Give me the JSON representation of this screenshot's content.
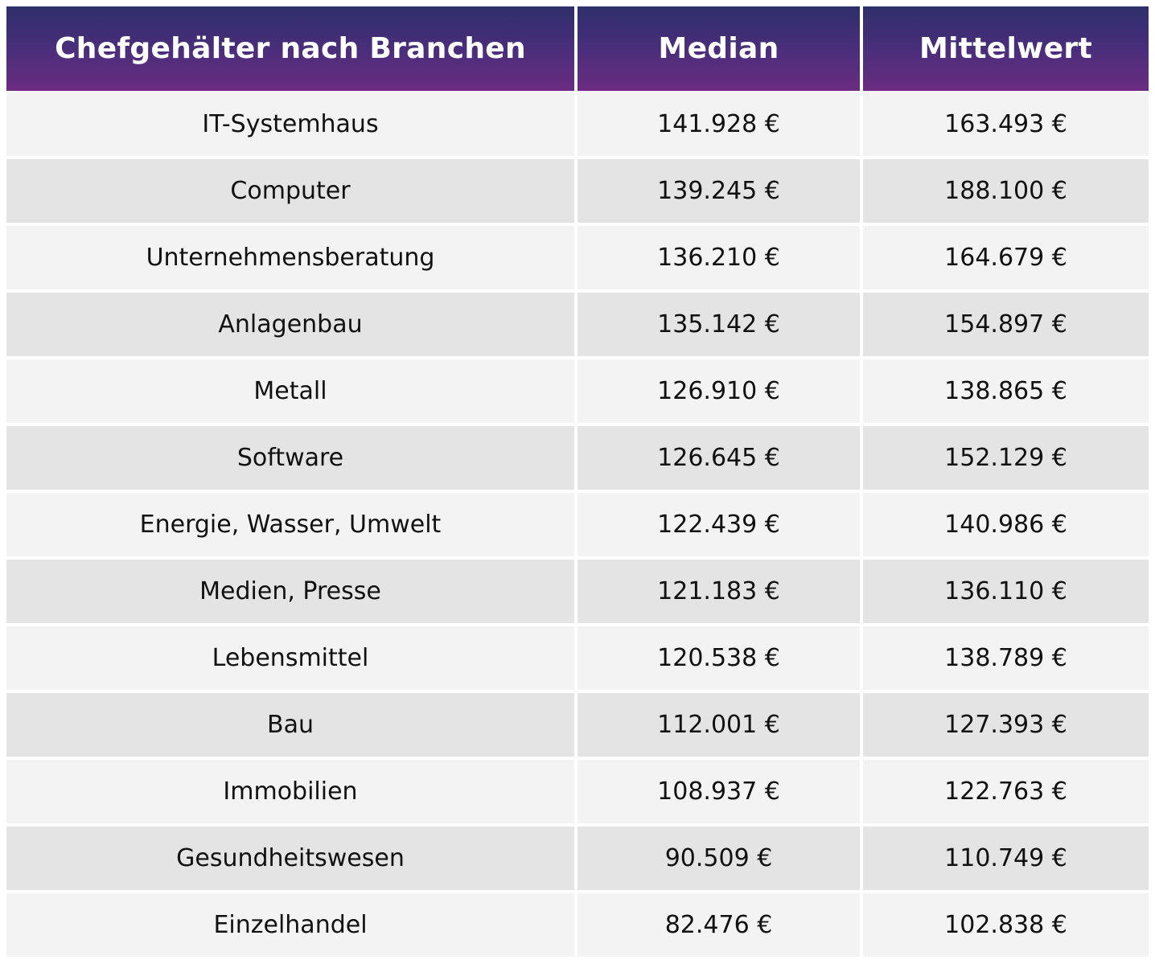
{
  "colors": {
    "header_top": "#2e2f6a",
    "header_bottom": "#6b2c80",
    "row_light": "#f3f3f3",
    "row_dark": "#e4e4e4"
  },
  "chart_data": {
    "type": "table",
    "columns": [
      "Chefgehälter nach Branchen",
      "Median",
      "Mittelwert"
    ],
    "rows": [
      [
        "IT-Systemhaus",
        "141.928 €",
        "163.493 €"
      ],
      [
        "Computer",
        "139.245 €",
        "188.100 €"
      ],
      [
        "Unternehmensberatung",
        "136.210 €",
        "164.679 €"
      ],
      [
        "Anlagenbau",
        "135.142 €",
        "154.897 €"
      ],
      [
        "Metall",
        "126.910 €",
        "138.865 €"
      ],
      [
        "Software",
        "126.645 €",
        "152.129 €"
      ],
      [
        "Energie, Wasser, Umwelt",
        "122.439 €",
        "140.986 €"
      ],
      [
        "Medien, Presse",
        "121.183 €",
        "136.110 €"
      ],
      [
        "Lebensmittel",
        "120.538 €",
        "138.789 €"
      ],
      [
        "Bau",
        "112.001 €",
        "127.393 €"
      ],
      [
        "Immobilien",
        "108.937 €",
        "122.763 €"
      ],
      [
        "Gesundheitswesen",
        "90.509 €",
        "110.749 €"
      ],
      [
        "Einzelhandel",
        "82.476 €",
        "102.838 €"
      ]
    ]
  }
}
